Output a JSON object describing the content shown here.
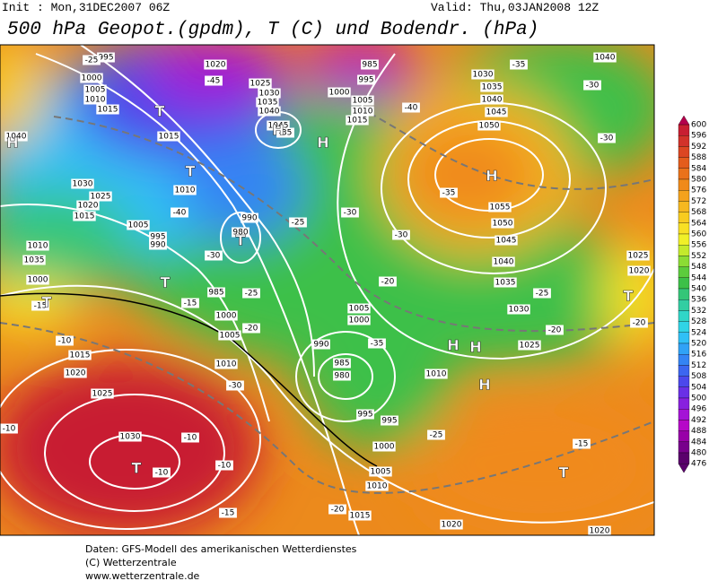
{
  "header": {
    "init": "Init : Mon,31DEC2007 06Z",
    "valid": "Valid: Thu,03JAN2008 12Z",
    "title": "500 hPa Geopot.(gpdm), T (C) und Bodendr. (hPa)"
  },
  "colorbar": {
    "levels": [
      600,
      596,
      592,
      588,
      584,
      580,
      576,
      572,
      568,
      564,
      560,
      556,
      552,
      548,
      544,
      540,
      536,
      532,
      528,
      524,
      520,
      516,
      512,
      508,
      504,
      500,
      496,
      492,
      488,
      484,
      480,
      476
    ],
    "colors": [
      "#b4004c",
      "#c81e32",
      "#d2322a",
      "#dc4622",
      "#e45c1c",
      "#ea721a",
      "#f08a1a",
      "#f4a21c",
      "#f6b820",
      "#f8cc20",
      "#f8e024",
      "#f0f028",
      "#c4ea2c",
      "#8cdc34",
      "#5ccc3c",
      "#3cc048",
      "#34c678",
      "#32cea2",
      "#30d6c8",
      "#30d4e6",
      "#30c0f6",
      "#30a2f6",
      "#3484f4",
      "#3c66f0",
      "#4c48ec",
      "#6a30e6",
      "#8820de",
      "#a414d6",
      "#b608c8",
      "#9800a8",
      "#78008c",
      "#5a006c"
    ]
  },
  "map": {
    "labels": [
      "995",
      "1000",
      "1005",
      "1010",
      "1015",
      "1020",
      "1025",
      "1030",
      "1035",
      "1040",
      "1045",
      "985",
      "995",
      "1000",
      "1005",
      "1010",
      "1015",
      "1030",
      "1035",
      "1040",
      "1045",
      "1050",
      "1055",
      "1050",
      "1045",
      "1040",
      "1035",
      "1030",
      "1025",
      "1040",
      "1025",
      "1020",
      "1040",
      "1030",
      "1025",
      "1020",
      "1015",
      "1010",
      "1035",
      "1000",
      "1005",
      "995",
      "990",
      "1015",
      "1010",
      "990",
      "980",
      "985",
      "1000",
      "1005",
      "1010",
      "1015",
      "1020",
      "1025",
      "1030",
      "1005",
      "1000",
      "990",
      "985",
      "980",
      "995",
      "995",
      "1000",
      "1005",
      "1010",
      "1015",
      "1020",
      "1010",
      "1020",
      "-25",
      "-45",
      "-40",
      "-30",
      "-35",
      "-25",
      "-25",
      "-20",
      "-15",
      "-15",
      "-10",
      "-10",
      "-10",
      "-10",
      "-10",
      "-15",
      "-30",
      "-35",
      "-30",
      "-20",
      "-30",
      "-40",
      "-35",
      "-30",
      "-30",
      "-35",
      "-25",
      "-20",
      "-20",
      "-15",
      "-25",
      "-20",
      "H",
      "H",
      "H",
      "H",
      "H",
      "H",
      "H",
      "T",
      "T",
      "T",
      "T",
      "T",
      "T",
      "T",
      "T"
    ]
  },
  "footer": {
    "line1": "Daten: GFS-Modell des amerikanischen Wetterdienstes",
    "line2": "(C) Wetterzentrale",
    "line3": "www.wetterzentrale.de"
  }
}
